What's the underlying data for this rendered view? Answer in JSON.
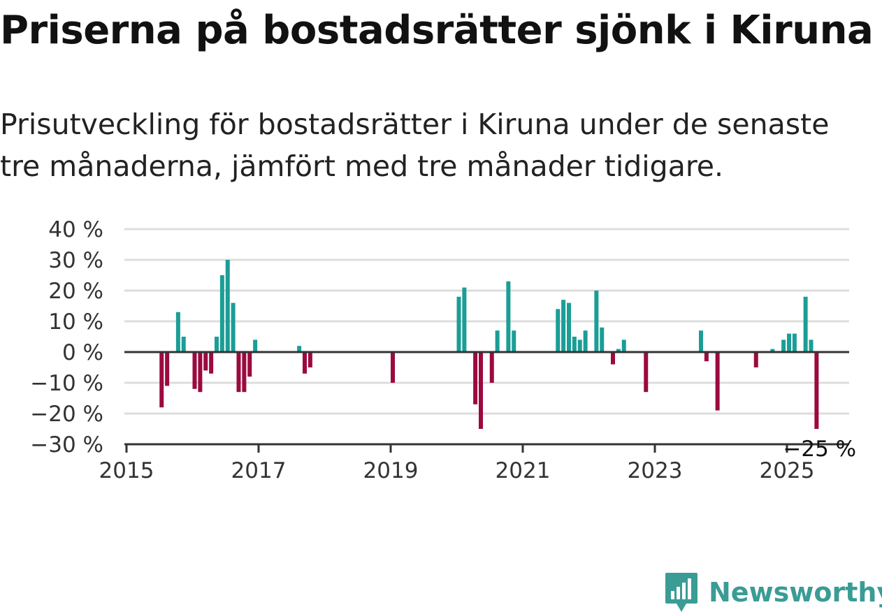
{
  "title": "Priserna på bostadsrätter sjönk i Kiruna",
  "subtitle": "Prisutveckling för bostadsrätter i Kiruna under de senaste tre månaderna, jämfört med tre månader tidigare.",
  "logo": {
    "text": "Newsworthy",
    "icon": "newsworthy-logo-icon",
    "color": "#3a9c95"
  },
  "colors": {
    "positive": "#1a9e96",
    "negative": "#9b0a3f",
    "grid": "#dddddd",
    "axis": "#333333"
  },
  "chart_data": {
    "type": "bar",
    "title": "Priserna på bostadsrätter sjönk i Kiruna",
    "subtitle": "Prisutveckling för bostadsrätter i Kiruna under de senaste tre månaderna, jämfört med tre månader tidigare.",
    "xlabel": "",
    "ylabel": "",
    "x_ticks": [
      "2015",
      "2017",
      "2019",
      "2021",
      "2023",
      "2025"
    ],
    "y_ticks": [
      {
        "value": 40,
        "label": "40 %"
      },
      {
        "value": 30,
        "label": "30 %"
      },
      {
        "value": 20,
        "label": "20 %"
      },
      {
        "value": 10,
        "label": "10 %"
      },
      {
        "value": 0,
        "label": "0 %"
      },
      {
        "value": -10,
        "label": "−10 %"
      },
      {
        "value": -20,
        "label": "−20 %"
      },
      {
        "value": -30,
        "label": "−30 %"
      }
    ],
    "ylim": [
      -30,
      40
    ],
    "xlim": [
      "2015-01",
      "2026-03"
    ],
    "grid": true,
    "annotation": "−25 %",
    "annotation_for": "2025-06",
    "series": [
      {
        "points": [
          {
            "x": "2015-07",
            "y": -18
          },
          {
            "x": "2015-08",
            "y": -11
          },
          {
            "x": "2015-10",
            "y": 13
          },
          {
            "x": "2015-11",
            "y": 5
          },
          {
            "x": "2016-01",
            "y": -12
          },
          {
            "x": "2016-02",
            "y": -13
          },
          {
            "x": "2016-03",
            "y": -6
          },
          {
            "x": "2016-04",
            "y": -7
          },
          {
            "x": "2016-05",
            "y": 5
          },
          {
            "x": "2016-06",
            "y": 25
          },
          {
            "x": "2016-07",
            "y": 30
          },
          {
            "x": "2016-08",
            "y": 16
          },
          {
            "x": "2016-09",
            "y": -13
          },
          {
            "x": "2016-10",
            "y": -13
          },
          {
            "x": "2016-11",
            "y": -8
          },
          {
            "x": "2016-12",
            "y": 4
          },
          {
            "x": "2017-08",
            "y": 2
          },
          {
            "x": "2017-09",
            "y": -7
          },
          {
            "x": "2017-10",
            "y": -5
          },
          {
            "x": "2019-01",
            "y": -10
          },
          {
            "x": "2020-01",
            "y": 18
          },
          {
            "x": "2020-02",
            "y": 21
          },
          {
            "x": "2020-04",
            "y": -17
          },
          {
            "x": "2020-05",
            "y": -25
          },
          {
            "x": "2020-07",
            "y": -10
          },
          {
            "x": "2020-08",
            "y": 7
          },
          {
            "x": "2020-10",
            "y": 23
          },
          {
            "x": "2020-11",
            "y": 7
          },
          {
            "x": "2021-07",
            "y": 14
          },
          {
            "x": "2021-08",
            "y": 17
          },
          {
            "x": "2021-09",
            "y": 16
          },
          {
            "x": "2021-10",
            "y": 5
          },
          {
            "x": "2021-11",
            "y": 4
          },
          {
            "x": "2021-12",
            "y": 7
          },
          {
            "x": "2022-02",
            "y": 20
          },
          {
            "x": "2022-03",
            "y": 8
          },
          {
            "x": "2022-05",
            "y": -4
          },
          {
            "x": "2022-06",
            "y": 1
          },
          {
            "x": "2022-07",
            "y": 4
          },
          {
            "x": "2022-11",
            "y": -13
          },
          {
            "x": "2023-09",
            "y": 7
          },
          {
            "x": "2023-10",
            "y": -3
          },
          {
            "x": "2023-12",
            "y": -19
          },
          {
            "x": "2024-07",
            "y": -5
          },
          {
            "x": "2024-10",
            "y": 1
          },
          {
            "x": "2024-12",
            "y": 4
          },
          {
            "x": "2025-01",
            "y": 6
          },
          {
            "x": "2025-02",
            "y": 6
          },
          {
            "x": "2025-04",
            "y": 18
          },
          {
            "x": "2025-05",
            "y": 4
          },
          {
            "x": "2025-06",
            "y": -25
          }
        ]
      }
    ]
  }
}
